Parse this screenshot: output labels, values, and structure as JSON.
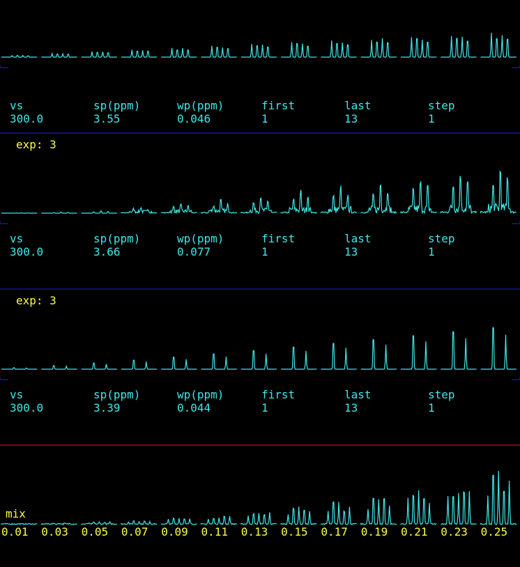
{
  "panels": [
    {
      "params": {
        "headers": [
          "vs",
          "sp(ppm)",
          "wp(ppm)",
          "first",
          "last",
          "step"
        ],
        "values": [
          "300.0",
          "3.55",
          "0.046",
          "1",
          "13",
          "1"
        ]
      }
    },
    {
      "label": "exp: 3",
      "params": {
        "headers": [
          "vs",
          "sp(ppm)",
          "wp(ppm)",
          "first",
          "last",
          "step"
        ],
        "values": [
          "300.0",
          "3.66",
          "0.077",
          "1",
          "13",
          "1"
        ]
      }
    },
    {
      "label": "exp: 3",
      "params": {
        "headers": [
          "vs",
          "sp(ppm)",
          "wp(ppm)",
          "first",
          "last",
          "step"
        ],
        "values": [
          "300.0",
          "3.39",
          "0.044",
          "1",
          "13",
          "1"
        ]
      }
    },
    {
      "label": "mix",
      "axis_labels": [
        "0.01",
        "0.03",
        "0.05",
        "0.07",
        "0.09",
        "0.11",
        "0.13",
        "0.15",
        "0.17",
        "0.19",
        "0.21",
        "0.23",
        "0.25"
      ]
    }
  ]
}
